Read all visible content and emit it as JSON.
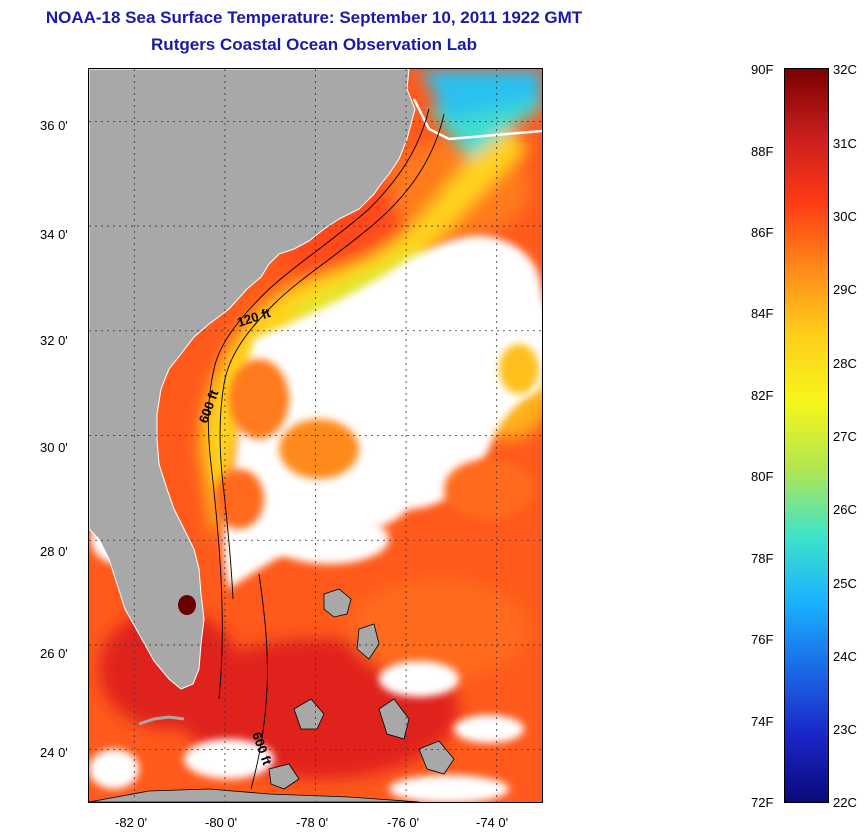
{
  "title": {
    "line1": "NOAA-18 Sea Surface Temperature:  September 10, 2011 1922 GMT",
    "line2": "Rutgers Coastal Ocean Observation Lab"
  },
  "map": {
    "lon_range": [
      -83,
      -73
    ],
    "lat_range": [
      23.0,
      37.0
    ],
    "land_color": "#a8a8a8",
    "cloud_color": "#ffffff",
    "grid": true,
    "lat_labels": [
      "36 0'",
      "34 0'",
      "32 0'",
      "30 0'",
      "28 0'",
      "26 0'",
      "24 0'"
    ],
    "lon_labels": [
      "-82 0'",
      "-80 0'",
      "-78 0'",
      "-76 0'",
      "-74 0'"
    ],
    "isobath_labels": [
      "120 ft",
      "600 ft",
      "600 ft"
    ]
  },
  "colorbar": {
    "range_f": [
      72,
      90
    ],
    "range_c": [
      22,
      32
    ],
    "f_labels": [
      "90F",
      "88F",
      "86F",
      "84F",
      "82F",
      "80F",
      "78F",
      "76F",
      "74F",
      "72F"
    ],
    "c_labels": [
      "32C",
      "31C",
      "30C",
      "29C",
      "28C",
      "27C",
      "26C",
      "25C",
      "24C",
      "23C",
      "22C"
    ],
    "gradient_stops": [
      "#7a0000",
      "#c81e1e",
      "#ff3a14",
      "#ff8a1a",
      "#ffcf1a",
      "#f6f61a",
      "#b2e650",
      "#3fe4c8",
      "#1ab2ff",
      "#1a6ae6",
      "#1a26c8",
      "#0a0a7a"
    ]
  }
}
